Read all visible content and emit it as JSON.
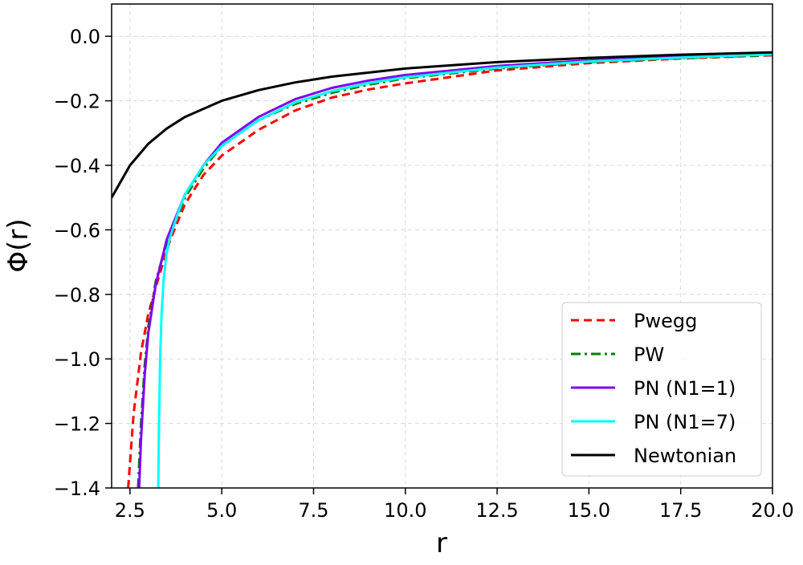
{
  "chart_data": {
    "type": "line",
    "title": "",
    "xlabel": "r",
    "ylabel": "Φ(r)",
    "xlim": [
      2.0,
      20.0
    ],
    "ylim": [
      -1.4,
      0.1
    ],
    "xticks": [
      2.5,
      5.0,
      7.5,
      10.0,
      12.5,
      15.0,
      17.5,
      20.0
    ],
    "xtick_labels": [
      "2.5",
      "5.0",
      "7.5",
      "10.0",
      "12.5",
      "15.0",
      "17.5",
      "20.0"
    ],
    "yticks": [
      0.0,
      -0.2,
      -0.4,
      -0.6,
      -0.8,
      -1.0,
      -1.2,
      -1.4
    ],
    "ytick_labels": [
      "0.0",
      "−0.2",
      "−0.4",
      "−0.6",
      "−0.8",
      "−1.0",
      "−1.2",
      "−1.4"
    ],
    "grid": true,
    "legend_position": "lower-right",
    "series": [
      {
        "name": "Pwegg",
        "color": "#ff0000",
        "style": "dashed",
        "x": [
          2.45,
          2.6,
          2.8,
          3.0,
          3.3,
          3.6,
          4.0,
          4.5,
          5.0,
          6.0,
          7.0,
          8.0,
          9.0,
          10.0,
          12.5,
          15.0,
          17.5,
          20.0
        ],
        "y": [
          -1.4,
          -1.17,
          -0.98,
          -0.86,
          -0.74,
          -0.63,
          -0.52,
          -0.43,
          -0.37,
          -0.29,
          -0.23,
          -0.19,
          -0.165,
          -0.146,
          -0.106,
          -0.083,
          -0.069,
          -0.059
        ]
      },
      {
        "name": "PW",
        "color": "#008000",
        "style": "dashdot",
        "x": [
          2.72,
          2.8,
          2.9,
          3.0,
          3.2,
          3.5,
          4.0,
          4.5,
          5.0,
          6.0,
          7.0,
          8.0,
          9.0,
          10.0,
          12.5,
          15.0,
          17.5,
          20.0
        ],
        "y": [
          -1.4,
          -1.2,
          -1.02,
          -0.9,
          -0.76,
          -0.64,
          -0.5,
          -0.41,
          -0.34,
          -0.26,
          -0.21,
          -0.175,
          -0.15,
          -0.13,
          -0.1,
          -0.08,
          -0.068,
          -0.058
        ]
      },
      {
        "name": "PN (N1=1)",
        "color": "#8000ee",
        "style": "solid",
        "x": [
          2.75,
          2.8,
          2.9,
          3.0,
          3.2,
          3.5,
          4.0,
          4.5,
          5.0,
          6.0,
          7.0,
          8.0,
          9.0,
          10.0,
          12.5,
          15.0,
          17.5,
          20.0
        ],
        "y": [
          -1.4,
          -1.25,
          -1.05,
          -0.92,
          -0.77,
          -0.63,
          -0.49,
          -0.4,
          -0.33,
          -0.25,
          -0.195,
          -0.16,
          -0.137,
          -0.12,
          -0.092,
          -0.075,
          -0.063,
          -0.054
        ]
      },
      {
        "name": "PN (N1=7)",
        "color": "#00ffff",
        "style": "solid",
        "x": [
          3.27,
          3.29,
          3.32,
          3.36,
          3.42,
          3.5,
          3.6,
          3.8,
          4.0,
          4.5,
          5.0,
          6.0,
          7.0,
          8.0,
          9.0,
          10.0,
          12.5,
          15.0,
          17.5,
          20.0
        ],
        "y": [
          -1.4,
          -1.2,
          -1.0,
          -0.86,
          -0.75,
          -0.67,
          -0.62,
          -0.55,
          -0.49,
          -0.4,
          -0.34,
          -0.26,
          -0.205,
          -0.17,
          -0.145,
          -0.127,
          -0.097,
          -0.078,
          -0.066,
          -0.056
        ]
      },
      {
        "name": "Newtonian",
        "color": "#000000",
        "style": "solid",
        "x": [
          2.0,
          2.5,
          3.0,
          3.5,
          4.0,
          5.0,
          6.0,
          7.0,
          8.0,
          10.0,
          12.5,
          15.0,
          17.5,
          20.0
        ],
        "y": [
          -0.5,
          -0.4,
          -0.333,
          -0.286,
          -0.25,
          -0.2,
          -0.167,
          -0.143,
          -0.125,
          -0.1,
          -0.08,
          -0.067,
          -0.057,
          -0.05
        ]
      }
    ]
  }
}
